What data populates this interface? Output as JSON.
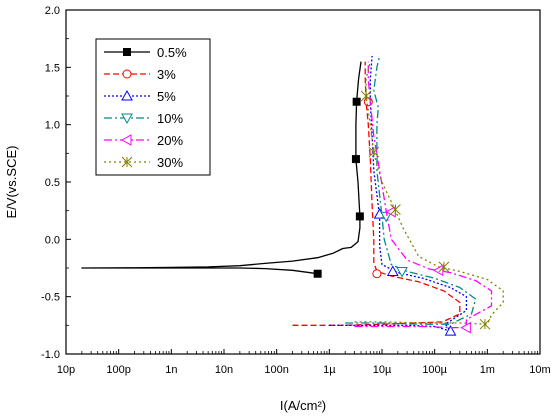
{
  "chart_data": {
    "type": "line",
    "xlabel": "I(A/cm²)",
    "ylabel": "E/V(vs.SCE)",
    "xscale": "log",
    "xlim": [
      1e-11,
      0.01
    ],
    "ylim": [
      -1.0,
      2.0
    ],
    "x_ticks": [
      {
        "value": 1e-11,
        "label": "10p"
      },
      {
        "value": 1e-10,
        "label": "100p"
      },
      {
        "value": 1e-09,
        "label": "1n"
      },
      {
        "value": 1e-08,
        "label": "10n"
      },
      {
        "value": 1e-07,
        "label": "100n"
      },
      {
        "value": 1e-06,
        "label": "1µ"
      },
      {
        "value": 1e-05,
        "label": "10µ"
      },
      {
        "value": 0.0001,
        "label": "100µ"
      },
      {
        "value": 0.001,
        "label": "1m"
      },
      {
        "value": 0.01,
        "label": "10m"
      }
    ],
    "y_ticks": [
      {
        "value": -1.0,
        "label": "-1.0"
      },
      {
        "value": -0.5,
        "label": "-0.5"
      },
      {
        "value": 0.0,
        "label": "0.0"
      },
      {
        "value": 0.5,
        "label": "0.5"
      },
      {
        "value": 1.0,
        "label": "1.0"
      },
      {
        "value": 1.5,
        "label": "1.5"
      },
      {
        "value": 2.0,
        "label": "2.0"
      }
    ],
    "grid": false,
    "legend_position": "top-left",
    "series": [
      {
        "name": "0.5%",
        "color": "#000000",
        "dash": "",
        "marker": "square",
        "points": [
          [
            6e-07,
            -0.3
          ],
          [
            2e-07,
            -0.27
          ],
          [
            6e-08,
            -0.255
          ],
          [
            2e-08,
            -0.25
          ],
          [
            5e-09,
            -0.25
          ],
          [
            1e-09,
            -0.25
          ],
          [
            2e-10,
            -0.25
          ],
          [
            2e-11,
            -0.25
          ],
          [
            2e-10,
            -0.248
          ],
          [
            1e-09,
            -0.245
          ],
          [
            5e-09,
            -0.24
          ],
          [
            2e-08,
            -0.23
          ],
          [
            6e-08,
            -0.21
          ],
          [
            2e-07,
            -0.19
          ],
          [
            6e-07,
            -0.16
          ],
          [
            1.2e-06,
            -0.12
          ],
          [
            1.8e-06,
            -0.08
          ],
          [
            2.6e-06,
            -0.07
          ],
          [
            3.5e-06,
            -0.02
          ],
          [
            3.8e-06,
            0.1
          ],
          [
            3.8e-06,
            0.2
          ],
          [
            3.5e-06,
            0.5
          ],
          [
            3.2e-06,
            0.7
          ],
          [
            3.2e-06,
            1.0
          ],
          [
            3.3e-06,
            1.2
          ],
          [
            3.6e-06,
            1.4
          ],
          [
            4e-06,
            1.55
          ]
        ],
        "markers": [
          [
            6e-07,
            -0.3
          ],
          [
            3.8e-06,
            0.2
          ],
          [
            3.2e-06,
            0.7
          ],
          [
            3.3e-06,
            1.2
          ]
        ]
      },
      {
        "name": "3%",
        "color": "#ff0000",
        "dash": "6,3",
        "marker": "circle",
        "points": [
          [
            2e-07,
            -0.75
          ],
          [
            2e-06,
            -0.75
          ],
          [
            1e-05,
            -0.74
          ],
          [
            4e-05,
            -0.73
          ],
          [
            0.00014,
            -0.72
          ],
          [
            0.0003,
            -0.65
          ],
          [
            0.0003,
            -0.55
          ],
          [
            0.00015,
            -0.45
          ],
          [
            5e-05,
            -0.37
          ],
          [
            1.5e-05,
            -0.32
          ],
          [
            8e-06,
            -0.28
          ],
          [
            7e-06,
            -0.2
          ],
          [
            7e-06,
            0.0
          ],
          [
            6.5e-06,
            0.3
          ],
          [
            6e-06,
            0.7
          ],
          [
            5.5e-06,
            1.0
          ],
          [
            5e-06,
            1.2
          ],
          [
            4.8e-06,
            1.4
          ],
          [
            4.8e-06,
            1.55
          ]
        ],
        "markers": [
          [
            8e-06,
            -0.3
          ],
          [
            5.5e-06,
            1.2
          ]
        ]
      },
      {
        "name": "5%",
        "color": "#0000ff",
        "dash": "2,2",
        "marker": "triangle-up",
        "points": [
          [
            1e-06,
            -0.75
          ],
          [
            6e-06,
            -0.75
          ],
          [
            3e-05,
            -0.75
          ],
          [
            0.0001,
            -0.76
          ],
          [
            0.0002,
            -0.8
          ],
          [
            0.00016,
            -0.74
          ],
          [
            0.0004,
            -0.62
          ],
          [
            0.0004,
            -0.5
          ],
          [
            0.0002,
            -0.42
          ],
          [
            6e-05,
            -0.34
          ],
          [
            2e-05,
            -0.29
          ],
          [
            1e-05,
            -0.22
          ],
          [
            9e-06,
            -0.05
          ],
          [
            9e-06,
            0.2
          ],
          [
            7e-06,
            0.6
          ],
          [
            6.5e-06,
            0.9
          ],
          [
            6e-06,
            1.2
          ],
          [
            6e-06,
            1.4
          ],
          [
            6.5e-06,
            1.6
          ]
        ],
        "markers": [
          [
            1.6e-05,
            -0.28
          ],
          [
            9e-06,
            0.22
          ],
          [
            0.0002,
            -0.8
          ]
        ]
      },
      {
        "name": "10%",
        "color": "#008b8b",
        "dash": "8,3,2,3",
        "marker": "triangle-down",
        "points": [
          [
            2e-06,
            -0.73
          ],
          [
            1e-05,
            -0.73
          ],
          [
            5e-05,
            -0.74
          ],
          [
            0.0002,
            -0.74
          ],
          [
            0.0005,
            -0.65
          ],
          [
            0.0006,
            -0.52
          ],
          [
            0.0003,
            -0.42
          ],
          [
            0.0001,
            -0.34
          ],
          [
            3e-05,
            -0.28
          ],
          [
            1.5e-05,
            -0.22
          ],
          [
            1.1e-05,
            0.0
          ],
          [
            1e-05,
            0.2
          ],
          [
            8e-06,
            0.6
          ],
          [
            8e-06,
            1.0
          ],
          [
            8.5e-06,
            1.15
          ],
          [
            7e-06,
            1.3
          ],
          [
            8e-06,
            1.5
          ],
          [
            9e-06,
            1.6
          ]
        ],
        "markers": [
          [
            2.4e-05,
            -0.28
          ],
          [
            1.2e-05,
            0.2
          ]
        ]
      },
      {
        "name": "20%",
        "color": "#ff00ff",
        "dash": "8,3,2,3",
        "marker": "triangle-left",
        "points": [
          [
            3e-06,
            -0.76
          ],
          [
            1e-05,
            -0.76
          ],
          [
            6e-05,
            -0.76
          ],
          [
            0.0002,
            -0.77
          ],
          [
            0.0004,
            -0.77
          ],
          [
            0.0004,
            -0.7
          ],
          [
            0.0012,
            -0.58
          ],
          [
            0.0012,
            -0.45
          ],
          [
            0.0006,
            -0.36
          ],
          [
            0.0002,
            -0.29
          ],
          [
            8e-05,
            -0.26
          ],
          [
            3e-05,
            -0.18
          ],
          [
            1.5e-05,
            0.0
          ],
          [
            1.2e-05,
            0.25
          ],
          [
            9e-06,
            0.6
          ],
          [
            7e-06,
            0.9
          ],
          [
            6e-06,
            1.2
          ],
          [
            5.5e-06,
            1.4
          ],
          [
            5.5e-06,
            1.55
          ]
        ],
        "markers": [
          [
            0.00012,
            -0.27
          ],
          [
            1.5e-05,
            0.24
          ],
          [
            0.0004,
            -0.77
          ]
        ]
      },
      {
        "name": "30%",
        "color": "#808000",
        "dash": "2,3",
        "marker": "star",
        "points": [
          [
            3e-06,
            -0.72
          ],
          [
            1e-05,
            -0.72
          ],
          [
            8e-05,
            -0.73
          ],
          [
            0.0003,
            -0.73
          ],
          [
            0.001,
            -0.74
          ],
          [
            0.0012,
            -0.66
          ],
          [
            0.002,
            -0.55
          ],
          [
            0.002,
            -0.45
          ],
          [
            0.001,
            -0.35
          ],
          [
            0.0003,
            -0.28
          ],
          [
            0.00012,
            -0.24
          ],
          [
            5e-05,
            -0.15
          ],
          [
            2.5e-05,
            0.1
          ],
          [
            1.8e-05,
            0.25
          ],
          [
            1e-05,
            0.5
          ],
          [
            7e-06,
            0.75
          ],
          [
            6e-06,
            1.0
          ],
          [
            5e-06,
            1.25
          ],
          [
            5e-06,
            1.4
          ],
          [
            6e-06,
            1.55
          ]
        ],
        "markers": [
          [
            0.00015,
            -0.24
          ],
          [
            1.8e-05,
            0.26
          ],
          [
            7e-06,
            0.76
          ],
          [
            5e-06,
            1.25
          ],
          [
            0.0009,
            -0.74
          ]
        ]
      }
    ]
  }
}
